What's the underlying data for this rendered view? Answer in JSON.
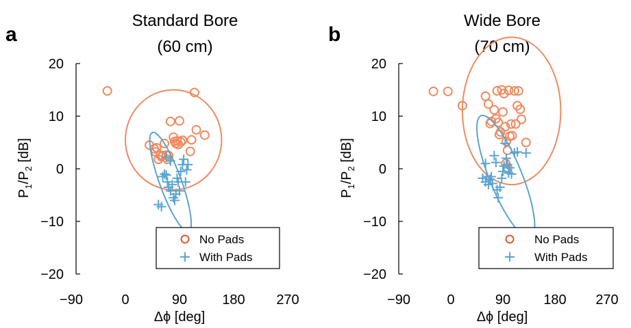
{
  "chart_data": [
    {
      "type": "scatter",
      "panel_letter": "a",
      "title_line1": "Standard Bore",
      "title_line2": "(60 cm)",
      "xlabel": "Δϕ  [deg]",
      "ylabel_main": "P",
      "ylabel_sub1": "1",
      "ylabel_mid": "/P",
      "ylabel_sub2": "2",
      "ylabel_end": " [dB]",
      "xlim": [
        -90,
        270
      ],
      "ylim": [
        -20,
        20
      ],
      "xticks": [
        -90,
        0,
        90,
        180,
        270
      ],
      "xtick_labels": [
        "−90",
        "0",
        "90",
        "180",
        "270"
      ],
      "yticks": [
        20,
        10,
        0,
        -10,
        -20
      ],
      "ytick_labels": [
        "20",
        "10",
        "0",
        "−10",
        "−20"
      ],
      "grid": false,
      "legend_position": "bottom-right",
      "series": [
        {
          "name": "No Pads",
          "marker": "circle",
          "color": "#F0895F",
          "points": [
            [
              -30,
              14.8
            ],
            [
              115,
              14.5
            ],
            [
              40,
              4.5
            ],
            [
              48,
              3.8
            ],
            [
              50,
              3.2
            ],
            [
              52,
              4.0
            ],
            [
              55,
              1.8
            ],
            [
              58,
              2.6
            ],
            [
              60,
              2.3
            ],
            [
              62,
              2.5
            ],
            [
              65,
              4.8
            ],
            [
              68,
              2.6
            ],
            [
              70,
              1.8
            ],
            [
              72,
              2.5
            ],
            [
              75,
              9.0
            ],
            [
              80,
              6.0
            ],
            [
              82,
              5.2
            ],
            [
              84,
              4.8
            ],
            [
              86,
              5.3
            ],
            [
              88,
              4.6
            ],
            [
              90,
              9.1
            ],
            [
              92,
              5.1
            ],
            [
              95,
              5.4
            ],
            [
              108,
              3.3
            ],
            [
              110,
              5.5
            ],
            [
              118,
              7.4
            ],
            [
              132,
              6.4
            ]
          ],
          "ellipse": {
            "cx": 80,
            "cy": 5.5,
            "rx": 80,
            "ry": 9.5,
            "angle": 0
          }
        },
        {
          "name": "With Pads",
          "marker": "plus",
          "color": "#5BA4CF",
          "points": [
            [
              55,
              -6.8
            ],
            [
              60,
              -7.2
            ],
            [
              62,
              -1.5
            ],
            [
              65,
              -1.0
            ],
            [
              68,
              -1.2
            ],
            [
              70,
              -2.5
            ],
            [
              72,
              -3.5
            ],
            [
              75,
              -4.2
            ],
            [
              78,
              -3.0
            ],
            [
              80,
              -5.5
            ],
            [
              82,
              -6.0
            ],
            [
              84,
              -4.8
            ],
            [
              86,
              -1.8
            ],
            [
              88,
              -2.5
            ],
            [
              90,
              -4.2
            ],
            [
              92,
              -0.5
            ],
            [
              95,
              0.8
            ],
            [
              97,
              1.8
            ],
            [
              100,
              -2.5
            ],
            [
              102,
              -0.2
            ],
            [
              104,
              0.8
            ],
            [
              68,
              2.2
            ],
            [
              75,
              1.5
            ]
          ],
          "ellipse": {
            "cx": 75,
            "cy": -2.5,
            "rx": 18,
            "ry": 10,
            "angle": -20
          }
        }
      ]
    },
    {
      "type": "scatter",
      "panel_letter": "b",
      "title_line1": "Wide Bore",
      "title_line2": "(70 cm)",
      "xlabel": "Δϕ  [deg]",
      "ylabel_main": "P",
      "ylabel_sub1": "1",
      "ylabel_mid": "/P",
      "ylabel_sub2": "2",
      "ylabel_end": " [dB]",
      "xlim": [
        -90,
        270
      ],
      "ylim": [
        -20,
        20
      ],
      "xticks": [
        -90,
        0,
        90,
        180,
        270
      ],
      "xtick_labels": [
        "−90",
        "0",
        "90",
        "180",
        "270"
      ],
      "yticks": [
        20,
        10,
        0,
        -10,
        -20
      ],
      "ytick_labels": [
        "20",
        "10",
        "0",
        "−10",
        "−20"
      ],
      "grid": false,
      "legend_position": "bottom-right",
      "series": [
        {
          "name": "No Pads",
          "marker": "circle",
          "color": "#F0895F",
          "points": [
            [
              -30,
              14.7
            ],
            [
              -5,
              14.7
            ],
            [
              20,
              12.0
            ],
            [
              60,
              13.8
            ],
            [
              65,
              12.3
            ],
            [
              68,
              8.6
            ],
            [
              70,
              9.0
            ],
            [
              75,
              11.2
            ],
            [
              78,
              9.5
            ],
            [
              80,
              14.8
            ],
            [
              82,
              8.8
            ],
            [
              84,
              6.5
            ],
            [
              86,
              7.0
            ],
            [
              88,
              15.0
            ],
            [
              90,
              10.8
            ],
            [
              92,
              14.3
            ],
            [
              94,
              8.0
            ],
            [
              96,
              5.2
            ],
            [
              98,
              3.5
            ],
            [
              100,
              14.9
            ],
            [
              102,
              6.2
            ],
            [
              104,
              8.5
            ],
            [
              106,
              6.3
            ],
            [
              110,
              14.8
            ],
            [
              112,
              8.5
            ],
            [
              115,
              12.0
            ],
            [
              117,
              14.8
            ],
            [
              120,
              11.3
            ],
            [
              122,
              9.4
            ],
            [
              130,
              5.0
            ],
            [
              95,
              1.0
            ],
            [
              98,
              0.2
            ]
          ],
          "ellipse": {
            "cx": 105,
            "cy": 11,
            "rx": 85,
            "ry": 14,
            "angle": 0
          }
        },
        {
          "name": "With Pads",
          "marker": "plus",
          "color": "#5BA4CF",
          "points": [
            [
              55,
              -1.8
            ],
            [
              60,
              -2.5
            ],
            [
              62,
              -1.5
            ],
            [
              65,
              -3.0
            ],
            [
              68,
              -2.0
            ],
            [
              70,
              -1.5
            ],
            [
              72,
              -2.8
            ],
            [
              75,
              2.5
            ],
            [
              78,
              1.2
            ],
            [
              80,
              -4.0
            ],
            [
              82,
              -5.5
            ],
            [
              85,
              -3.5
            ],
            [
              88,
              -1.8
            ],
            [
              90,
              -0.5
            ],
            [
              92,
              0.5
            ],
            [
              94,
              4.8
            ],
            [
              96,
              2.0
            ],
            [
              98,
              0.8
            ],
            [
              100,
              -0.8
            ],
            [
              102,
              0.2
            ],
            [
              105,
              -1.0
            ],
            [
              110,
              3.0
            ],
            [
              115,
              3.2
            ],
            [
              130,
              3.0
            ],
            [
              60,
              1.0
            ]
          ],
          "ellipse": {
            "cx": 95,
            "cy": -1.5,
            "rx": 28,
            "ry": 12.5,
            "angle": -22
          }
        }
      ]
    }
  ]
}
